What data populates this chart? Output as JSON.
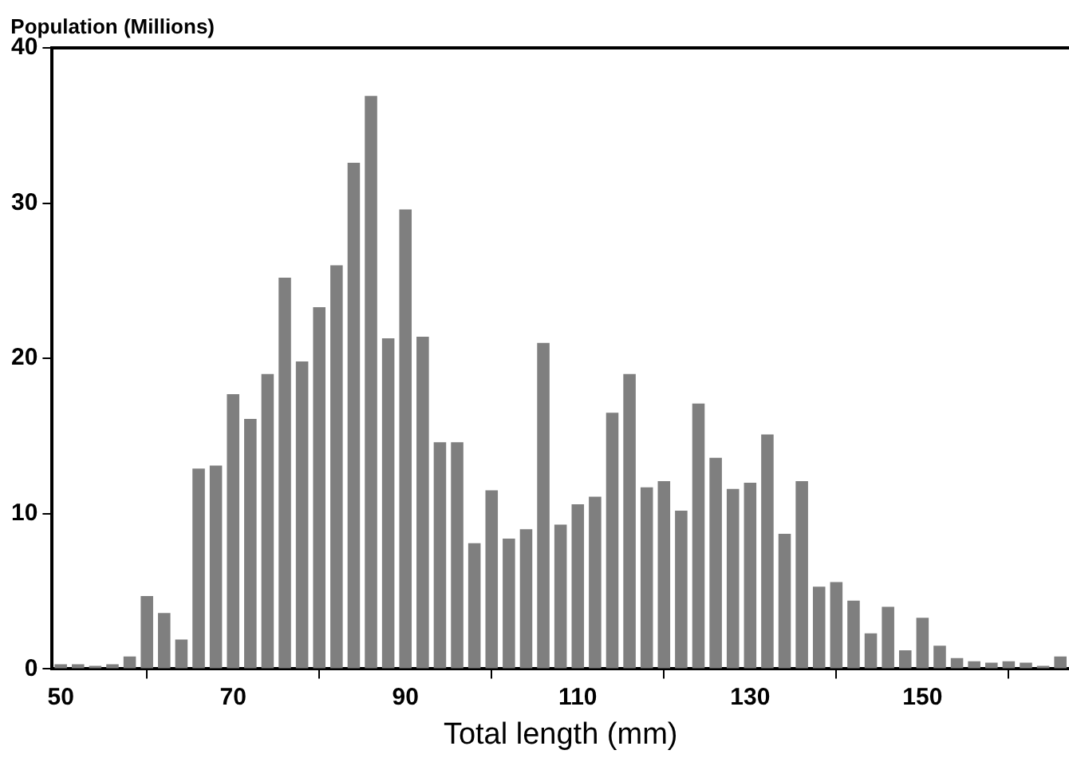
{
  "chart_data": {
    "type": "histogram",
    "ylabel": "Population (Millions)",
    "xlabel": "Total length (mm)",
    "bins": [
      49,
      51,
      53,
      55,
      57,
      59,
      61,
      63,
      65,
      67,
      69,
      71,
      73,
      75,
      77,
      79,
      81,
      83,
      85,
      87,
      89,
      91,
      93,
      95,
      97,
      99,
      101,
      103,
      105,
      107,
      109,
      111,
      113,
      115,
      117,
      119,
      121,
      123,
      125,
      127,
      129,
      131,
      133,
      135,
      137,
      139,
      141,
      143,
      145,
      147,
      149,
      151,
      153,
      155,
      157,
      159,
      161,
      163,
      165,
      167
    ],
    "values": [
      0.3,
      0.3,
      0.2,
      0.3,
      0.8,
      4.7,
      3.6,
      1.9,
      12.9,
      13.1,
      17.7,
      16.1,
      19.0,
      25.2,
      19.8,
      23.3,
      26.0,
      32.6,
      36.9,
      21.3,
      29.6,
      21.4,
      14.6,
      14.6,
      8.1,
      11.5,
      8.4,
      9.0,
      21.0,
      9.3,
      10.6,
      11.1,
      16.5,
      19.0,
      11.7,
      12.1,
      10.2,
      17.1,
      13.6,
      11.6,
      12.0,
      15.1,
      8.7,
      12.1,
      5.3,
      5.6,
      4.4,
      2.3,
      4.0,
      1.2,
      3.3,
      1.5,
      0.7,
      0.5,
      0.4,
      0.5,
      0.4,
      0.2,
      0.8
    ],
    "color": "#7f7f7f",
    "xlim": [
      49,
      167
    ],
    "xticks": [
      50,
      70,
      90,
      110,
      130,
      150
    ],
    "ylim": [
      0,
      40
    ],
    "yticks": [
      0,
      10,
      20,
      30,
      40
    ],
    "grid": false,
    "legend": false
  }
}
